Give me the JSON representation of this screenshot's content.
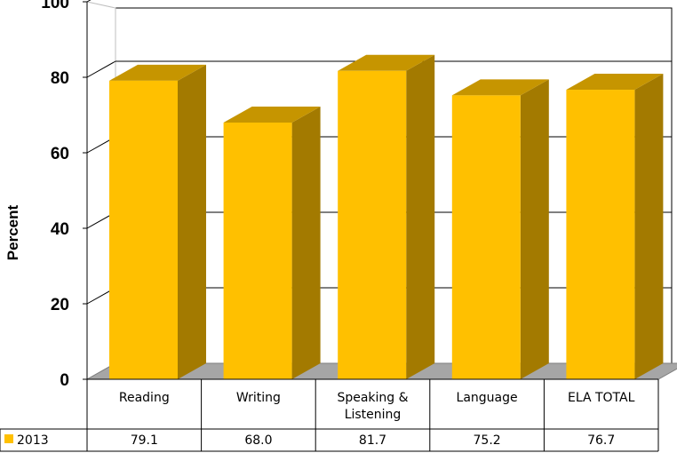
{
  "chart_data": {
    "type": "bar",
    "ylabel": "Percent",
    "ylim": [
      0,
      100
    ],
    "yticks": [
      "0",
      "20",
      "40",
      "60",
      "80",
      "100"
    ],
    "categories": [
      [
        "Reading"
      ],
      [
        "Writing"
      ],
      [
        "Speaking &",
        "Listening"
      ],
      [
        "Language"
      ],
      [
        "ELA TOTAL"
      ]
    ],
    "series": [
      {
        "name": "2013",
        "values": [
          79.1,
          68.0,
          81.7,
          75.2,
          76.7
        ],
        "labels": [
          "79.1",
          "68.0",
          "81.7",
          "75.2",
          "76.7"
        ]
      }
    ],
    "grid": true,
    "style": "3d-column",
    "legend": "data-table",
    "colors": {
      "front": "#FFC000",
      "top": "#C69500",
      "side": "#A37A00",
      "floor": "#A6A6A6"
    }
  }
}
